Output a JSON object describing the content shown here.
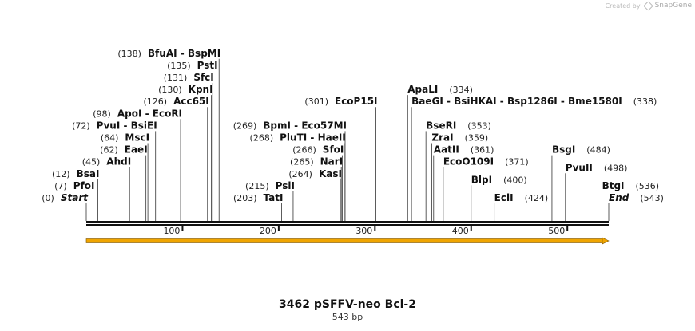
{
  "credit": {
    "prefix": "Created by",
    "brand": "SnapGene"
  },
  "map": {
    "title": "3462 pSFFV-neo Bcl-2",
    "length_label": "543 bp",
    "length": 543,
    "ticks": [
      100,
      200,
      300,
      400,
      500
    ],
    "start_label": "Start",
    "end_label": "End",
    "sites": [
      {
        "pos": "0",
        "names": [
          "Start"
        ],
        "row": 0,
        "side": "left",
        "italic": true,
        "cut": 0
      },
      {
        "pos": "7",
        "names": [
          "PfoI"
        ],
        "row": 1,
        "side": "left",
        "cut": 7
      },
      {
        "pos": "12",
        "names": [
          "BsaI"
        ],
        "row": 2,
        "side": "left",
        "cut": 12
      },
      {
        "pos": "45",
        "names": [
          "AhdI"
        ],
        "row": 3,
        "side": "left",
        "cut": 45
      },
      {
        "pos": "62",
        "names": [
          "EaeI"
        ],
        "row": 4,
        "side": "left",
        "cut": 62
      },
      {
        "pos": "64",
        "names": [
          "MscI"
        ],
        "row": 5,
        "side": "left",
        "cut": 64
      },
      {
        "pos": "72",
        "names": [
          "PvuI",
          "BsiEI"
        ],
        "row": 6,
        "side": "left",
        "cut": 72
      },
      {
        "pos": "98",
        "names": [
          "ApoI",
          "EcoRI"
        ],
        "row": 7,
        "side": "left",
        "cut": 98
      },
      {
        "pos": "126",
        "names": [
          "Acc65I"
        ],
        "row": 8,
        "side": "left",
        "cut": 126
      },
      {
        "pos": "130",
        "names": [
          "KpnI"
        ],
        "row": 9,
        "side": "left",
        "cut": 130
      },
      {
        "pos": "131",
        "names": [
          "SfcI"
        ],
        "row": 10,
        "side": "left",
        "cut": 131
      },
      {
        "pos": "135",
        "names": [
          "PstI"
        ],
        "row": 11,
        "side": "left",
        "cut": 135
      },
      {
        "pos": "138",
        "names": [
          "BfuAI",
          "BspMI"
        ],
        "row": 12,
        "side": "left",
        "cut": 138
      },
      {
        "pos": "203",
        "names": [
          "TatI"
        ],
        "row": 0,
        "side": "left",
        "cut": 203
      },
      {
        "pos": "215",
        "names": [
          "PsiI"
        ],
        "row": 1,
        "side": "left",
        "cut": 215
      },
      {
        "pos": "264",
        "names": [
          "KasI"
        ],
        "row": 2,
        "side": "left",
        "cut": 264
      },
      {
        "pos": "265",
        "names": [
          "NarI"
        ],
        "row": 3,
        "side": "left",
        "cut": 265
      },
      {
        "pos": "266",
        "names": [
          "SfoI"
        ],
        "row": 4,
        "side": "left",
        "cut": 266
      },
      {
        "pos": "268",
        "names": [
          "PluTI",
          "HaeII"
        ],
        "row": 5,
        "side": "left",
        "cut": 268
      },
      {
        "pos": "269",
        "names": [
          "BpmI",
          "Eco57MI"
        ],
        "row": 6,
        "side": "left",
        "cut": 269
      },
      {
        "pos": "301",
        "names": [
          "EcoP15I"
        ],
        "row": 8,
        "side": "left",
        "cut": 301
      },
      {
        "pos": "334",
        "names": [
          "ApaLI"
        ],
        "row": 9,
        "side": "right",
        "cut": 334
      },
      {
        "pos": "338",
        "names": [
          "BaeGI",
          "BsiHKAI",
          "Bsp1286I",
          "Bme1580I"
        ],
        "row": 8,
        "side": "right",
        "cut": 338
      },
      {
        "pos": "353",
        "names": [
          "BseRI"
        ],
        "row": 6,
        "side": "right",
        "cut": 353
      },
      {
        "pos": "359",
        "names": [
          "ZraI"
        ],
        "row": 5,
        "side": "right",
        "cut": 359
      },
      {
        "pos": "361",
        "names": [
          "AatII"
        ],
        "row": 4,
        "side": "right",
        "cut": 361
      },
      {
        "pos": "371",
        "names": [
          "EcoO109I"
        ],
        "row": 3,
        "side": "right",
        "cut": 371
      },
      {
        "pos": "400",
        "names": [
          "BlpI"
        ],
        "row": 1.5,
        "side": "right",
        "cut": 400
      },
      {
        "pos": "424",
        "names": [
          "EciI"
        ],
        "row": 0,
        "side": "right",
        "cut": 424
      },
      {
        "pos": "484",
        "names": [
          "BsgI"
        ],
        "row": 4,
        "side": "right",
        "cut": 484
      },
      {
        "pos": "498",
        "names": [
          "PvuII"
        ],
        "row": 2.5,
        "side": "right",
        "cut": 498
      },
      {
        "pos": "536",
        "names": [
          "BtgI"
        ],
        "row": 1,
        "side": "right",
        "cut": 536
      },
      {
        "pos": "543",
        "names": [
          "End"
        ],
        "row": 0,
        "side": "right",
        "italic": true,
        "cut": 543
      }
    ],
    "colors": {
      "backbone": "#111111",
      "feature": "#f0a500",
      "line": "#333333",
      "text": "#111111",
      "number": "#222222"
    }
  }
}
